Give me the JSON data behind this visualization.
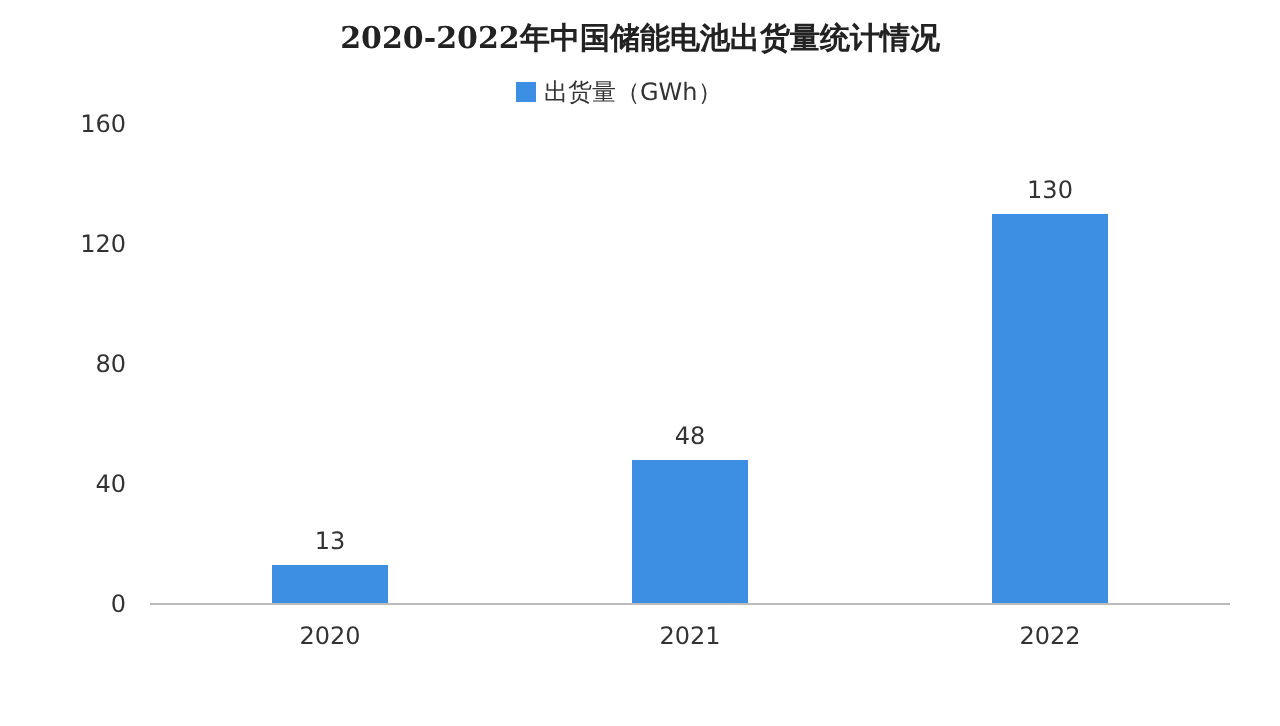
{
  "chart_data": {
    "type": "bar",
    "title": "2020-2022年中国储能电池出货量统计情况",
    "categories": [
      "2020",
      "2021",
      "2022"
    ],
    "series": [
      {
        "name": "出货量（GWh）",
        "color": "#3d8fe3",
        "values": [
          13,
          48,
          130
        ]
      }
    ],
    "ylim": [
      0,
      160
    ],
    "yticks": [
      0,
      40,
      80,
      120,
      160
    ],
    "data_labels": true,
    "legend": "top",
    "grid": false
  }
}
